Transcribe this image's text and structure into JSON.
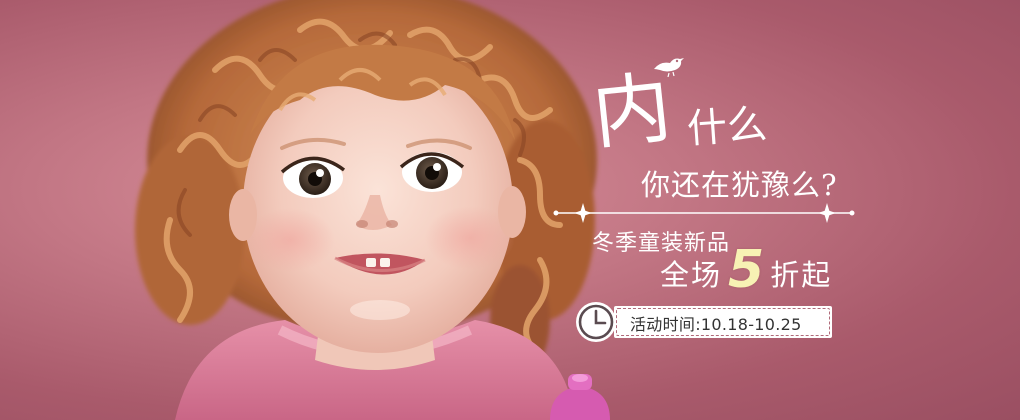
{
  "banner": {
    "headline_big": "内",
    "headline_small": "什么",
    "question": "你还在犹豫么?",
    "subline": "冬季童装新品",
    "offer_prefix": "全场",
    "offer_number": "5",
    "offer_suffix": "折起",
    "event_time": "活动时间:10.18-10.25"
  },
  "colors": {
    "background": "#b06a79",
    "text": "#ffffff",
    "accent": "#f7f2b4",
    "pill": "#ffffff",
    "pill_text": "#333333"
  },
  "icons": [
    "bird-icon",
    "sparkle-divider",
    "clock-icon"
  ]
}
